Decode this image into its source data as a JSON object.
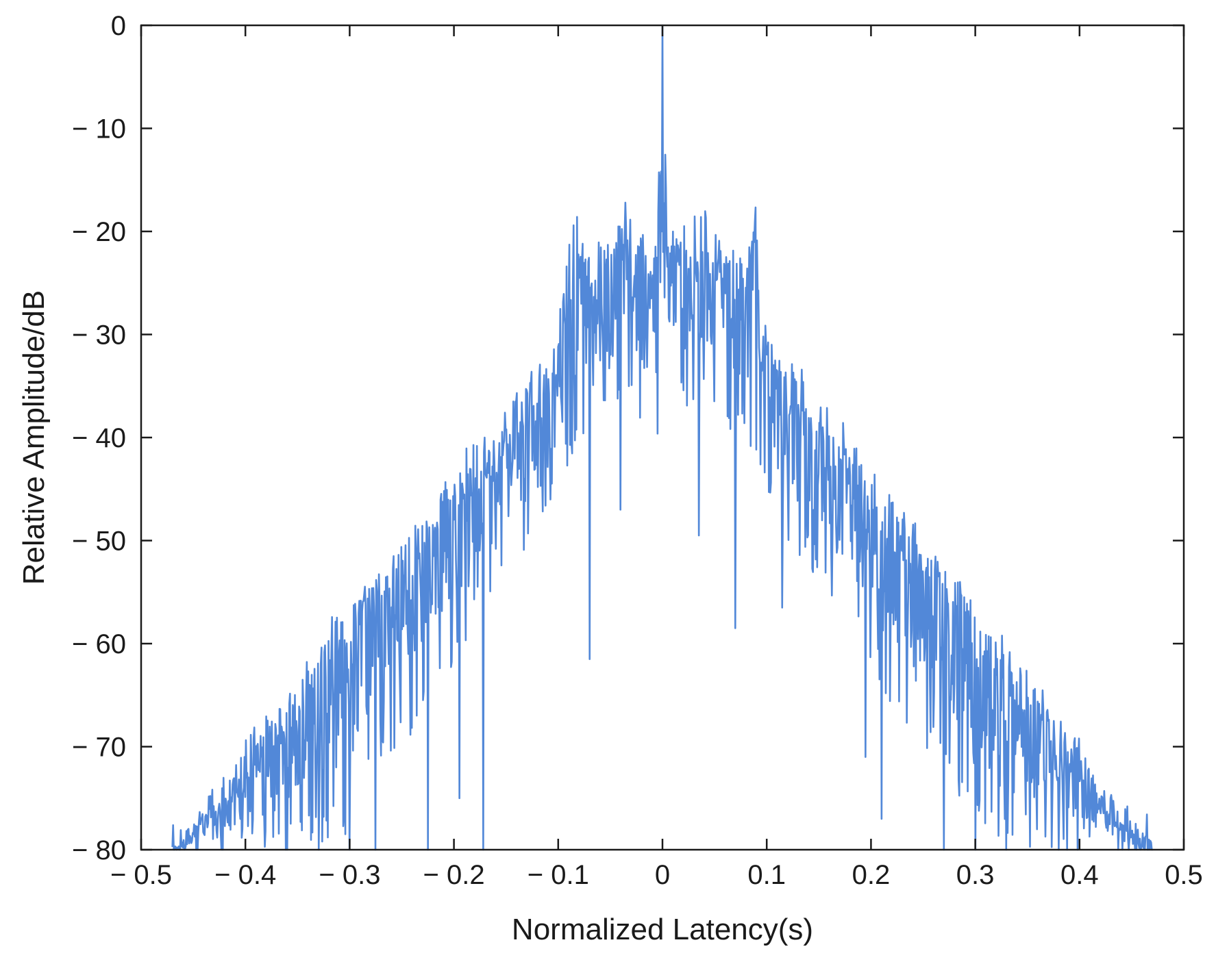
{
  "chart_data": {
    "type": "line",
    "title": "",
    "xlabel": "Normalized Latency(s)",
    "ylabel": "Relative Amplitude/dB",
    "xlim": [
      -0.5,
      0.5
    ],
    "ylim": [
      -80,
      0
    ],
    "x_ticks": [
      -0.5,
      -0.4,
      -0.3,
      -0.2,
      -0.1,
      0,
      0.1,
      0.2,
      0.3,
      0.4,
      0.5
    ],
    "x_tick_labels": [
      "− 0.5",
      "− 0.4",
      "− 0.3",
      "− 0.2",
      "− 0.1",
      "0",
      "0.1",
      "0.2",
      "0.3",
      "0.4",
      "0.5"
    ],
    "y_ticks": [
      0,
      -10,
      -20,
      -30,
      -40,
      -50,
      -60,
      -70,
      -80
    ],
    "y_tick_labels": [
      "0",
      "− 10",
      "− 20",
      "− 30",
      "− 40",
      "− 50",
      "− 60",
      "− 70",
      "− 80"
    ],
    "grid": false,
    "color": "#5288d8",
    "series": [
      {
        "x": [
          -0.47,
          -0.45,
          -0.42,
          -0.4,
          -0.38,
          -0.35,
          -0.33,
          -0.3,
          -0.28,
          -0.25,
          -0.22,
          -0.2,
          -0.18,
          -0.15,
          -0.12,
          -0.1,
          -0.09,
          -0.07,
          -0.05,
          -0.035,
          -0.02,
          -0.005,
          0,
          0.005,
          0.02,
          0.035,
          0.05,
          0.07,
          0.09,
          0.1,
          0.12,
          0.15,
          0.18,
          0.2,
          0.22,
          0.25,
          0.28,
          0.3,
          0.33,
          0.35,
          0.38,
          0.4,
          0.42,
          0.45,
          0.47
        ],
        "upper": [
          -80,
          -77,
          -73,
          -70,
          -67,
          -63,
          -60,
          -56,
          -53,
          -50,
          -46,
          -43,
          -41,
          -37,
          -33,
          -31,
          -17.5,
          -22,
          -20,
          -17.5,
          -20,
          -21,
          0,
          -21,
          -20,
          -17.5,
          -20,
          -22,
          -17.5,
          -29,
          -32,
          -36,
          -40,
          -43,
          -46,
          -50,
          -53,
          -56,
          -60,
          -63,
          -67,
          -70,
          -73,
          -77,
          -80
        ],
        "lower": [
          -80,
          -80,
          -80,
          -80,
          -80,
          -80,
          -80,
          -78,
          -74,
          -70,
          -66,
          -62,
          -58,
          -54,
          -50,
          -46,
          -42,
          -40,
          -38,
          -36,
          -38,
          -40,
          -44,
          -40,
          -38,
          -36,
          -38,
          -40,
          -42,
          -46,
          -50,
          -54,
          -58,
          -62,
          -66,
          -70,
          -74,
          -78,
          -80,
          -80,
          -80,
          -80,
          -80,
          -80,
          -80
        ],
        "deep_dips": [
          {
            "x": -0.36,
            "y": -80
          },
          {
            "x": -0.33,
            "y": -80
          },
          {
            "x": -0.3,
            "y": -80
          },
          {
            "x": -0.275,
            "y": -80
          },
          {
            "x": -0.225,
            "y": -80
          },
          {
            "x": -0.195,
            "y": -75
          },
          {
            "x": -0.172,
            "y": -80
          },
          {
            "x": -0.07,
            "y": -61.5
          },
          {
            "x": -0.04,
            "y": -47
          },
          {
            "x": 0.035,
            "y": -49.5
          },
          {
            "x": 0.07,
            "y": -58.5
          },
          {
            "x": 0.115,
            "y": -56.5
          },
          {
            "x": 0.195,
            "y": -71
          },
          {
            "x": 0.21,
            "y": -77
          },
          {
            "x": 0.27,
            "y": -80
          },
          {
            "x": 0.3,
            "y": -80
          },
          {
            "x": 0.33,
            "y": -80
          },
          {
            "x": 0.38,
            "y": -80
          }
        ]
      }
    ]
  }
}
